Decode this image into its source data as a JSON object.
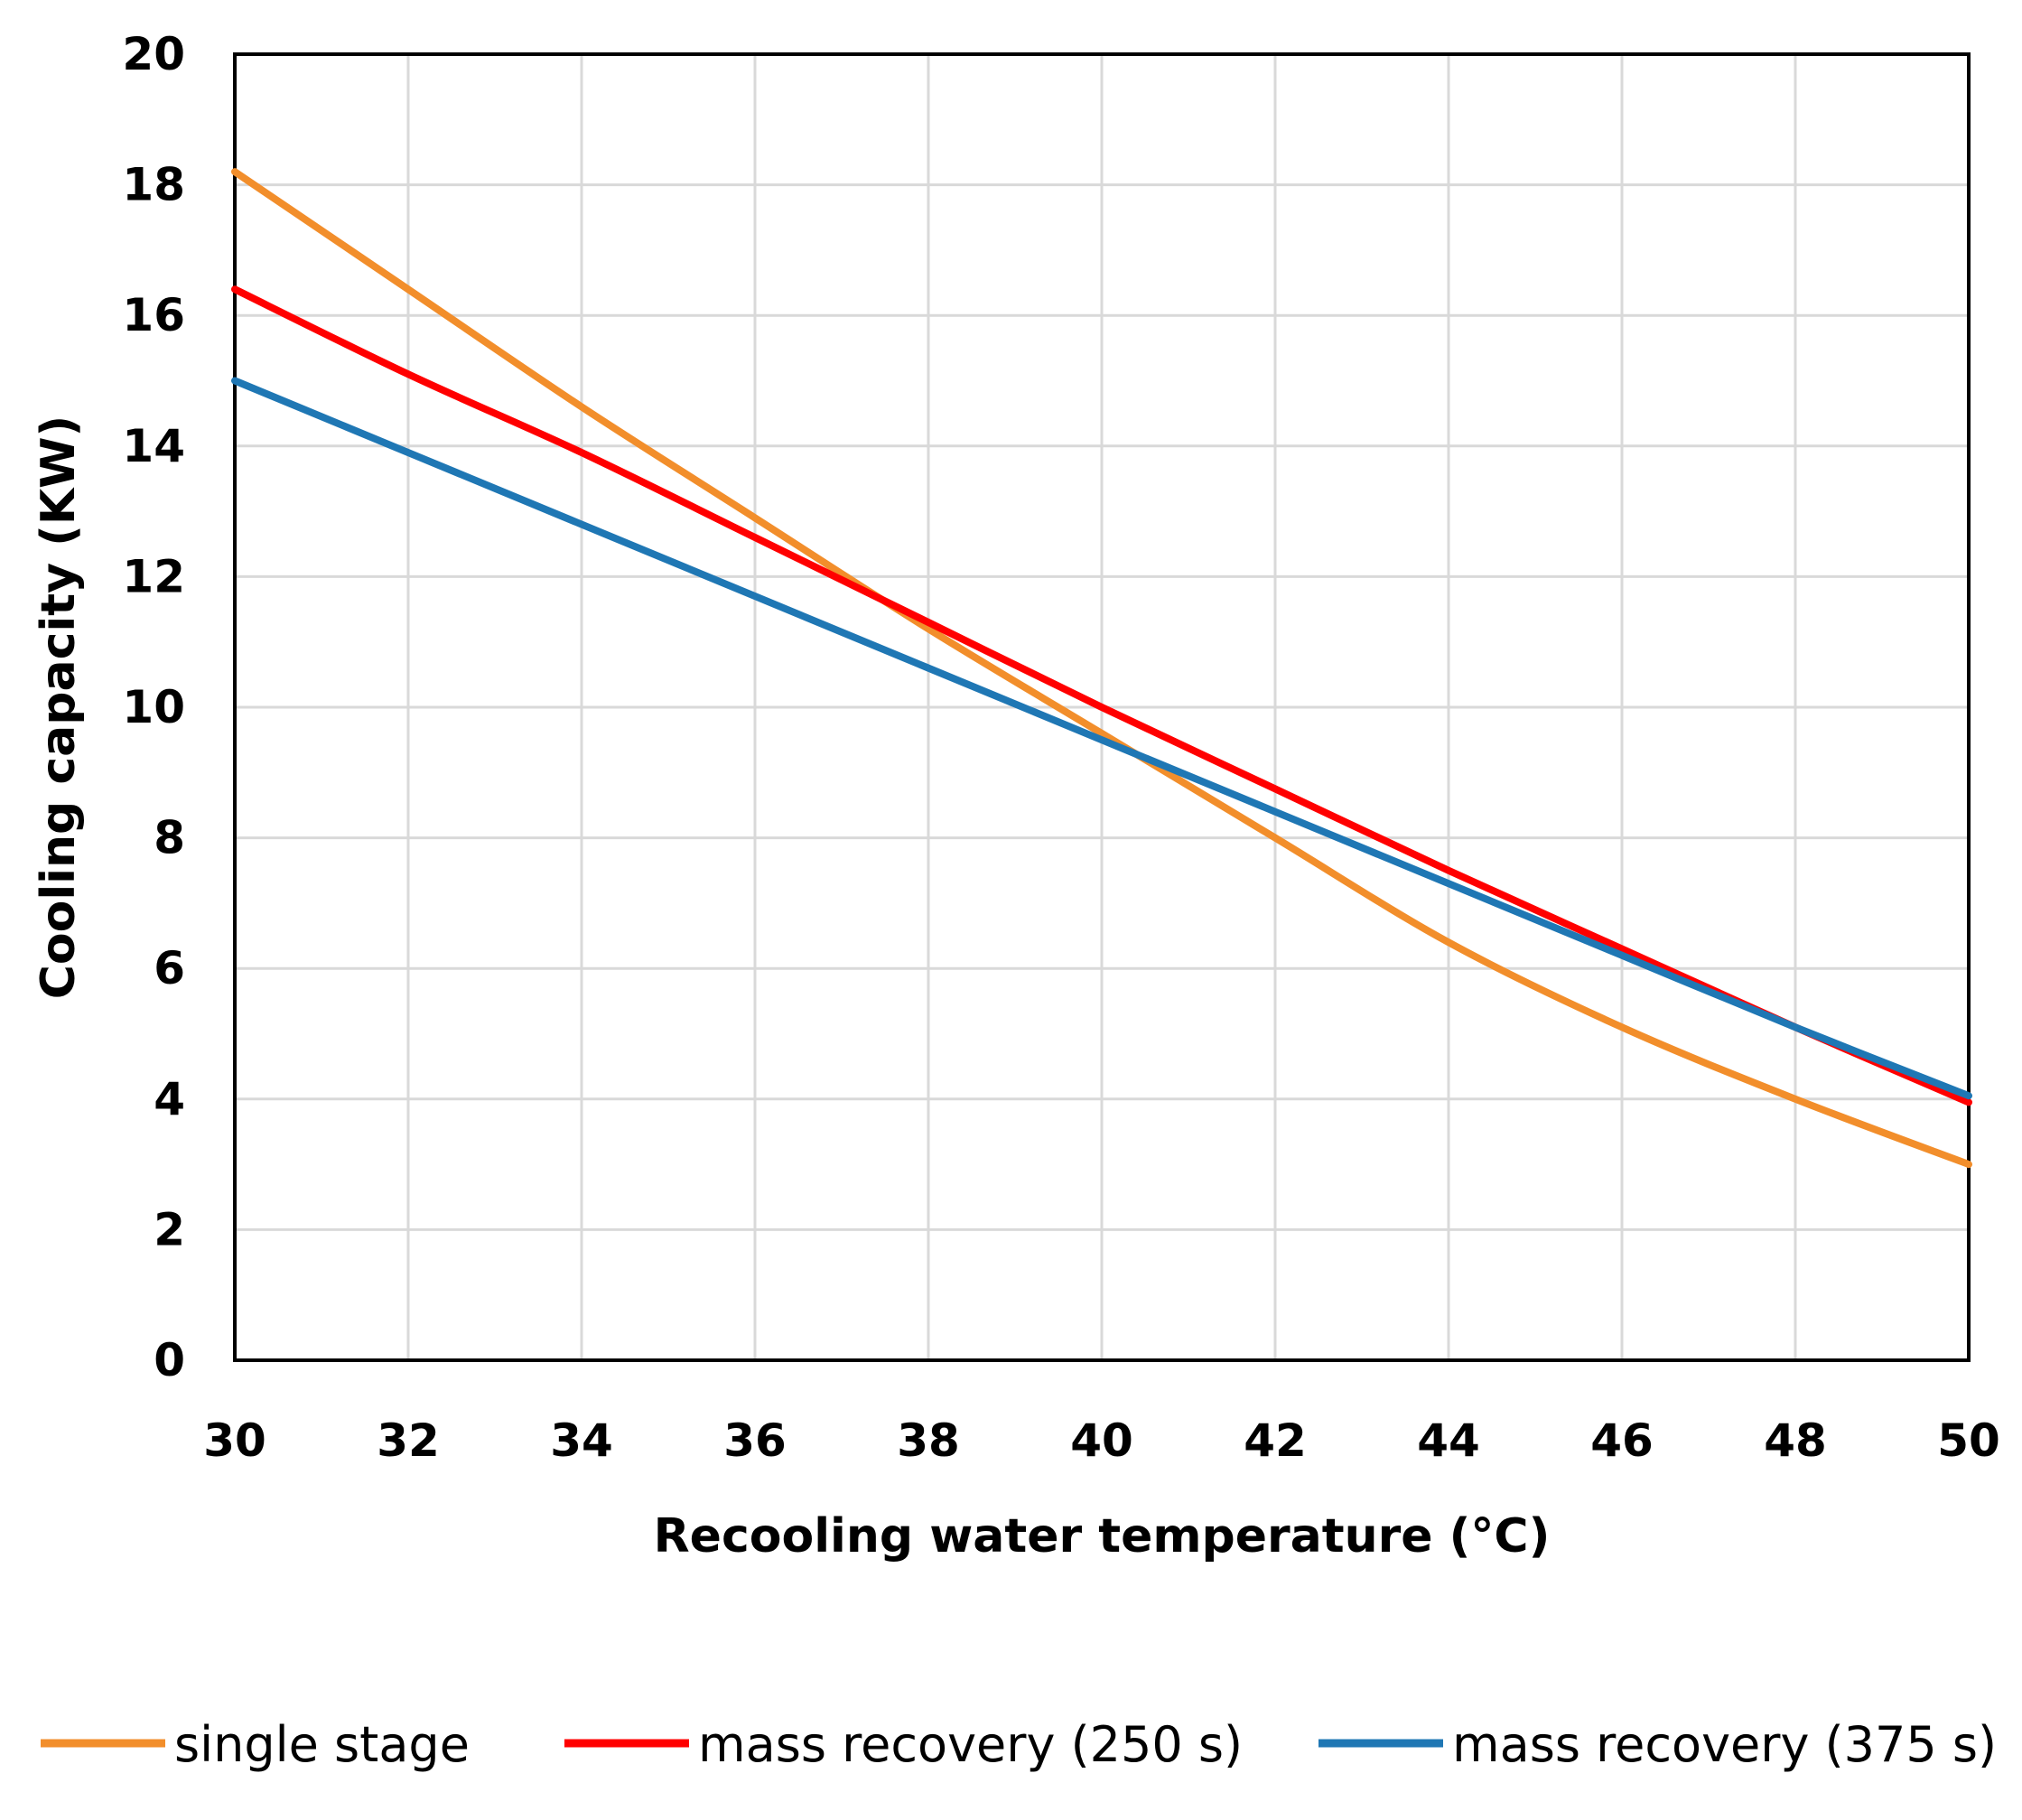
{
  "chart_data": {
    "type": "line",
    "title": "",
    "xlabel": "Recooling  water temperature (°C)",
    "ylabel": "Cooling capacity  (KW)",
    "xlim": [
      30,
      50
    ],
    "ylim": [
      0,
      20
    ],
    "x_ticks": [
      "30",
      "32",
      "34",
      "36",
      "38",
      "40",
      "42",
      "44",
      "46",
      "48",
      "50"
    ],
    "y_ticks": [
      "0",
      "2",
      "4",
      "6",
      "8",
      "10",
      "12",
      "14",
      "16",
      "18",
      "20"
    ],
    "grid": true,
    "legend_position": "bottom",
    "x": [
      30,
      32,
      34,
      36,
      38,
      40,
      42,
      44,
      46,
      48,
      50
    ],
    "series": [
      {
        "name": "single stage",
        "color": "#f28e2b",
        "values": [
          18.2,
          16.4,
          14.6,
          12.9,
          11.2,
          9.6,
          8.0,
          6.4,
          5.1,
          4.0,
          3.0
        ]
      },
      {
        "name": "mass recovery (250 s)",
        "color": "#ff0000",
        "values": [
          16.4,
          15.1,
          13.9,
          12.6,
          11.3,
          10.0,
          8.75,
          7.5,
          6.3,
          5.1,
          3.95
        ]
      },
      {
        "name": "mass recovery (375 s)",
        "color": "#1f77b4",
        "values": [
          15.0,
          13.9,
          12.8,
          11.7,
          10.6,
          9.5,
          8.4,
          7.3,
          6.2,
          5.1,
          4.05
        ]
      }
    ]
  }
}
